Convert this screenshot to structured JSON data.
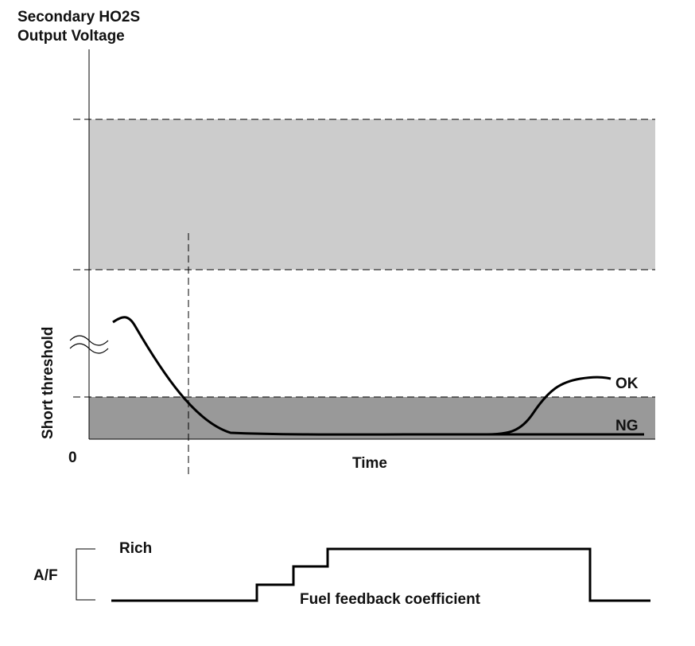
{
  "colors": {
    "upper_band": "#cccccc",
    "lower_band": "#999999",
    "line": "#000000"
  },
  "y_axis": {
    "title_line1": "Secondary HO2S",
    "title_line2": "Output Voltage",
    "threshold_label": "Short threshold",
    "origin_label": "0",
    "break_symbol": "axis-break-icon"
  },
  "x_axis": {
    "label": "Time"
  },
  "curves": {
    "ok_label": "OK",
    "ng_label": "NG"
  },
  "af_chart": {
    "axis_label": "A/F",
    "rich_label": "Rich",
    "signal_label": "Fuel feedback coefficient"
  }
}
